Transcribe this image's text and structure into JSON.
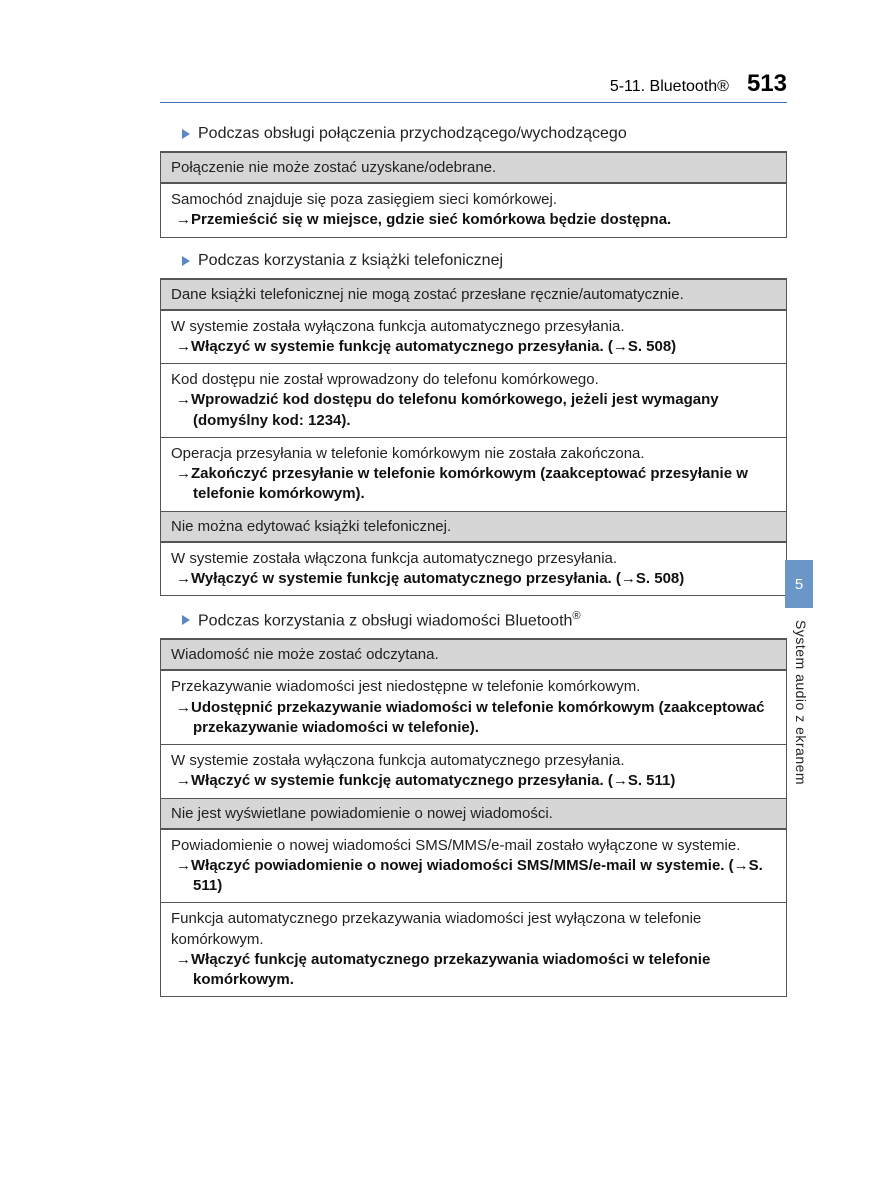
{
  "header": {
    "chapter_label": "5-11. Bluetooth®",
    "page_number": "513"
  },
  "side_tab": {
    "number": "5",
    "label": "System audio z ekranem",
    "tab_color": "#6a96c8"
  },
  "sections": [
    {
      "heading": "Podczas obsługi połączenia przychodzącego/wychodzącego",
      "blocks": [
        {
          "type": "hdr",
          "text": "Połączenie nie może zostać uzyskane/odebrane."
        },
        {
          "type": "cell",
          "cause": "Samochód znajduje się poza zasięgiem sieci komórkowej.",
          "solution": "Przemieścić się w miejsce, gdzie sieć komórkowa będzie dostępna."
        }
      ]
    },
    {
      "heading": "Podczas korzystania z książki telefonicznej",
      "blocks": [
        {
          "type": "hdr",
          "text": "Dane książki telefonicznej nie mogą zostać przesłane ręcznie/automatycznie."
        },
        {
          "type": "cell",
          "cause": "W systemie została wyłączona funkcja automatycznego przesyłania.",
          "solution": "Włączyć w systemie funkcję automatycznego przesyłania. (→S. 508)"
        },
        {
          "type": "cell",
          "cause": "Kod dostępu nie został wprowadzony do telefonu komórkowego.",
          "solution": "Wprowadzić kod dostępu do telefonu komórkowego, jeżeli jest wymagany (domyślny kod: 1234)."
        },
        {
          "type": "cell",
          "cause": "Operacja przesyłania w telefonie komórkowym nie została zakończona.",
          "solution": "Zakończyć przesyłanie w telefonie komórkowym (zaakceptować przesyłanie w telefonie komórkowym)."
        },
        {
          "type": "hdr",
          "text": "Nie można edytować książki telefonicznej."
        },
        {
          "type": "cell",
          "cause": "W systemie została włączona funkcja automatycznego przesyłania.",
          "solution": "Wyłączyć w systemie funkcję automatycznego przesyłania. (→S. 508)"
        }
      ]
    },
    {
      "heading": "Podczas korzystania z obsługi wiadomości Bluetooth®",
      "blocks": [
        {
          "type": "hdr",
          "text": "Wiadomość nie może zostać odczytana."
        },
        {
          "type": "cell",
          "cause": "Przekazywanie wiadomości jest niedostępne w telefonie komórkowym.",
          "solution": "Udostępnić przekazywanie wiadomości w telefonie komórkowym (zaakceptować przekazywanie wiadomości w telefonie)."
        },
        {
          "type": "cell",
          "cause": "W systemie została wyłączona funkcja automatycznego przesyłania.",
          "solution": "Włączyć w systemie funkcję automatycznego przesyłania. (→S. 511)"
        },
        {
          "type": "hdr",
          "text": "Nie jest wyświetlane powiadomienie o nowej wiadomości."
        },
        {
          "type": "cell",
          "cause": "Powiadomienie o nowej wiadomości SMS/MMS/e-mail zostało wyłączone w systemie.",
          "solution": "Włączyć powiadomienie o nowej wiadomości SMS/MMS/e-mail w systemie. (→S. 511)"
        },
        {
          "type": "cell",
          "cause": "Funkcja automatycznego przekazywania wiadomości jest wyłączona w telefonie komórkowym.",
          "solution": "Włączyć funkcję automatycznego przekazywania wiadomości w telefonie komórkowym."
        }
      ]
    }
  ],
  "colors": {
    "header_rule": "#3b6fb6",
    "triangle": "#5a88c2",
    "table_border": "#555555",
    "header_bg": "#d6d6d6",
    "text": "#222222",
    "background": "#ffffff"
  },
  "typography": {
    "body_fontsize": 15,
    "heading_fontsize": 16,
    "page_number_fontsize": 24,
    "font_family": "Segoe UI / Arial"
  }
}
